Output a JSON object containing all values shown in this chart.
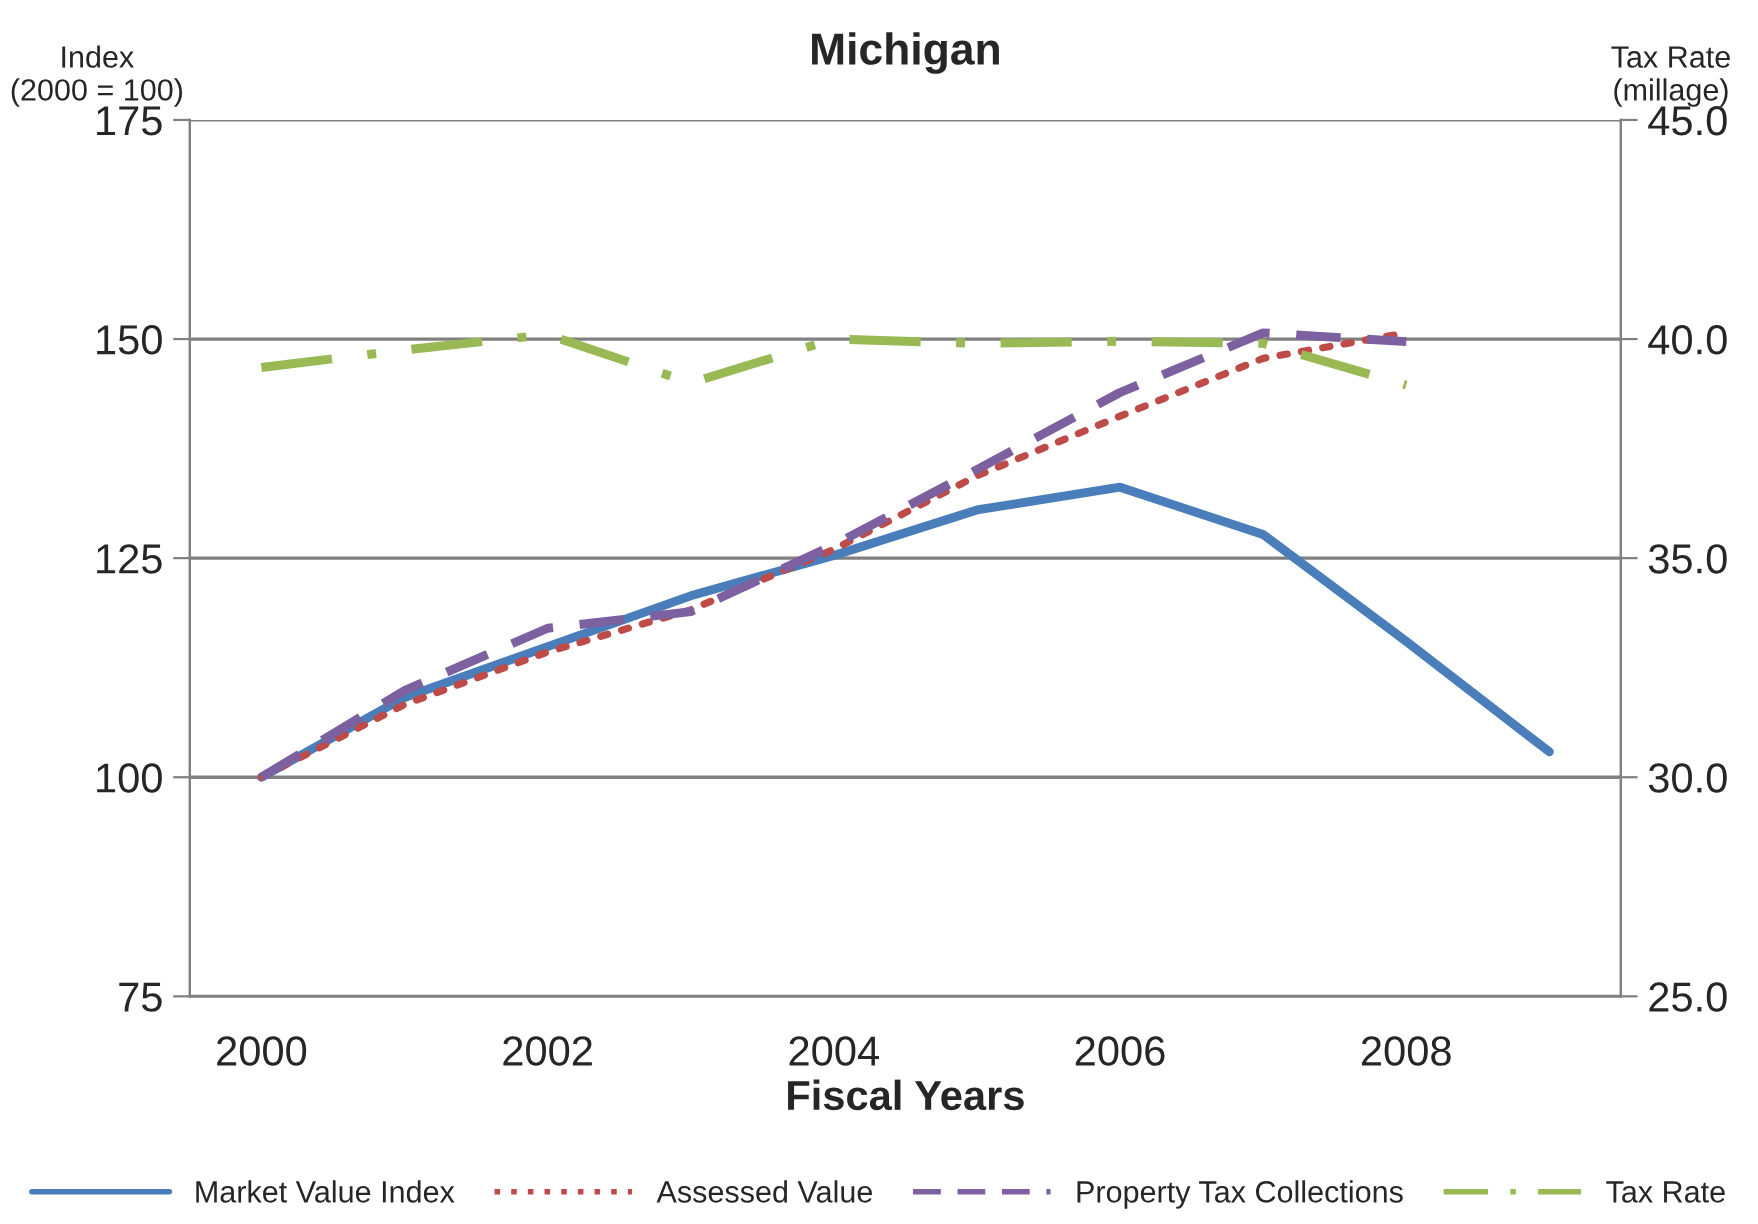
{
  "chart_data": {
    "type": "line",
    "title": "Michigan",
    "xlabel": "Fiscal Years",
    "ylabel": "Index\n(2000 = 100)",
    "y2label": "Tax Rate\n(millage)",
    "categories": [
      "2000",
      null,
      "2002",
      null,
      "2004",
      null,
      "2006",
      null,
      "2008",
      null
    ],
    "series": [
      {
        "name": "Market Value Index",
        "color": "#4a7ebb",
        "line_style": "solid",
        "values": [
          100,
          109.1,
          114.9,
          120.7,
          125.3,
          130.5,
          133.1,
          127.7,
          115.5,
          102.9
        ]
      },
      {
        "name": "Assessed Value",
        "color": "#be4b48",
        "line_style": "dotted",
        "values": [
          100,
          108.3,
          114.3,
          119.1,
          126,
          134.4,
          141.2,
          147.8,
          150.7,
          null
        ]
      },
      {
        "name": "Property Tax Collections",
        "color": "#7d60a0",
        "line_style": "dashed",
        "values": [
          100,
          109.9,
          117,
          118.9,
          126.5,
          135.1,
          143.9,
          150.7,
          149.7,
          null
        ]
      },
      {
        "name": "Tax Rate",
        "color": "#98b954",
        "line_style": "dashdot",
        "axis": "y2",
        "values": [
          39.35,
          39.75,
          40.1,
          39.0,
          40.0,
          39.9,
          39.95,
          39.9,
          38.95,
          null
        ]
      }
    ],
    "ylim": [
      75,
      175
    ],
    "yticks": [
      75,
      100,
      125,
      150,
      175
    ],
    "y2lim": [
      25,
      45
    ],
    "y2ticks": [
      {
        "value": 25,
        "label": "25.0"
      },
      {
        "value": 30,
        "label": "30.0"
      },
      {
        "value": 35,
        "label": "35.0"
      },
      {
        "value": 40,
        "label": "40.0"
      },
      {
        "value": 45,
        "label": "45.0"
      }
    ],
    "grid": "y",
    "legend": "bottom",
    "marker": "none"
  }
}
